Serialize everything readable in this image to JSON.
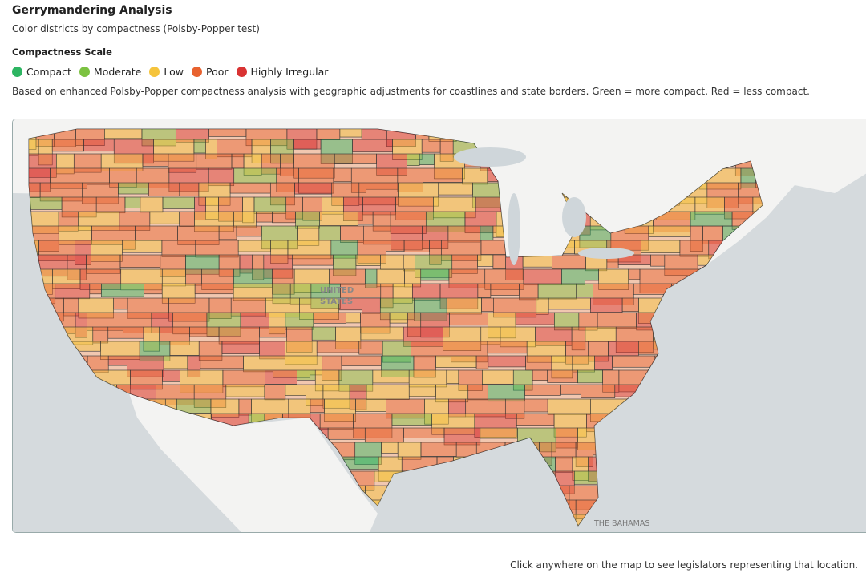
{
  "header": {
    "title": "Gerrymandering Analysis",
    "subtitle": "Color districts by compactness (Polsby-Popper test)"
  },
  "legend": {
    "title": "Compactness Scale",
    "items": [
      {
        "label": "Compact",
        "color": "#2db562"
      },
      {
        "label": "Moderate",
        "color": "#7cc241"
      },
      {
        "label": "Low",
        "color": "#f5c43c"
      },
      {
        "label": "Poor",
        "color": "#e8622f"
      },
      {
        "label": "Highly Irregular",
        "color": "#d93333"
      }
    ]
  },
  "description": "Based on enhanced Polsby-Popper compactness analysis with geographic adjustments for coastlines and state borders. Green = more compact, Red = less compact.",
  "map": {
    "labels": [
      "UNITED",
      "STATES",
      "THE BAHAMAS"
    ]
  },
  "footer": "Click anywhere on the map to see legislators representing that location."
}
